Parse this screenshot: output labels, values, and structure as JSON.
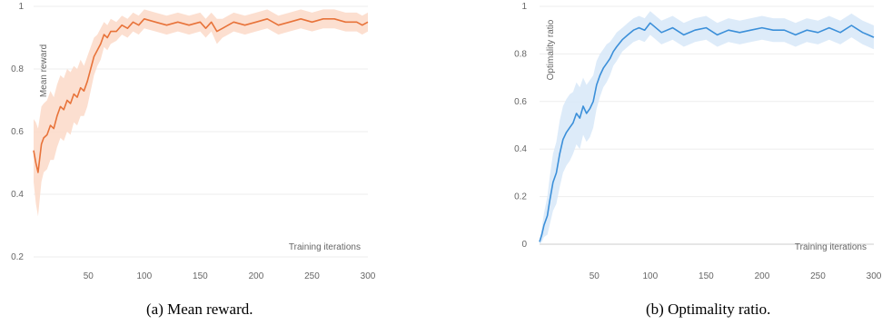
{
  "captions": {
    "a": "(a) Mean reward.",
    "b": "(b) Optimality ratio."
  },
  "chart_data": [
    {
      "type": "line",
      "xlabel": "Training iterations",
      "ylabel": "Mean reward",
      "xlim": [
        1,
        300
      ],
      "ylim": [
        0.2,
        1.0
      ],
      "x_ticks": [
        50,
        100,
        150,
        200,
        250,
        300
      ],
      "y_ticks": [
        0.2,
        0.4,
        0.6,
        0.8,
        1
      ],
      "grid": "horizontal",
      "color": "#e8733a",
      "band_color": "#fbd9c8",
      "series": [
        {
          "x": [
            1,
            3,
            5,
            8,
            10,
            13,
            16,
            19,
            22,
            25,
            28,
            31,
            34,
            37,
            40,
            43,
            46,
            49,
            52,
            55,
            58,
            61,
            64,
            67,
            70,
            75,
            80,
            85,
            90,
            95,
            100,
            110,
            120,
            130,
            140,
            150,
            155,
            160,
            165,
            170,
            175,
            180,
            190,
            200,
            210,
            220,
            230,
            240,
            250,
            260,
            270,
            280,
            290,
            295,
            300
          ],
          "y": [
            0.54,
            0.5,
            0.47,
            0.56,
            0.58,
            0.59,
            0.62,
            0.61,
            0.65,
            0.68,
            0.67,
            0.7,
            0.69,
            0.72,
            0.71,
            0.74,
            0.73,
            0.76,
            0.8,
            0.84,
            0.86,
            0.88,
            0.91,
            0.9,
            0.92,
            0.92,
            0.94,
            0.93,
            0.95,
            0.94,
            0.96,
            0.95,
            0.94,
            0.95,
            0.94,
            0.95,
            0.93,
            0.95,
            0.92,
            0.93,
            0.94,
            0.95,
            0.94,
            0.95,
            0.96,
            0.94,
            0.95,
            0.96,
            0.95,
            0.96,
            0.96,
            0.95,
            0.95,
            0.94,
            0.95
          ],
          "band": [
            0.1,
            0.13,
            0.14,
            0.12,
            0.11,
            0.11,
            0.11,
            0.1,
            0.1,
            0.1,
            0.1,
            0.1,
            0.1,
            0.09,
            0.09,
            0.09,
            0.08,
            0.08,
            0.07,
            0.06,
            0.05,
            0.05,
            0.04,
            0.04,
            0.04,
            0.03,
            0.03,
            0.03,
            0.03,
            0.03,
            0.03,
            0.03,
            0.03,
            0.03,
            0.03,
            0.03,
            0.03,
            0.03,
            0.04,
            0.03,
            0.03,
            0.03,
            0.03,
            0.03,
            0.03,
            0.03,
            0.03,
            0.03,
            0.03,
            0.03,
            0.03,
            0.03,
            0.03,
            0.03,
            0.03
          ]
        }
      ]
    },
    {
      "type": "line",
      "xlabel": "Training iterations",
      "ylabel": "Optimality ratio",
      "xlim": [
        1,
        300
      ],
      "ylim": [
        0,
        1.0
      ],
      "x_ticks": [
        50,
        100,
        150,
        200,
        250,
        300
      ],
      "y_ticks": [
        0,
        0.2,
        0.4,
        0.6,
        0.8,
        1
      ],
      "grid": "horizontal",
      "color": "#3b8fd9",
      "band_color": "#d7e8f8",
      "series": [
        {
          "x": [
            1,
            3,
            5,
            8,
            10,
            13,
            16,
            19,
            22,
            25,
            28,
            31,
            34,
            37,
            40,
            43,
            46,
            49,
            52,
            55,
            58,
            61,
            64,
            67,
            70,
            75,
            80,
            85,
            90,
            95,
            100,
            110,
            120,
            130,
            140,
            150,
            160,
            170,
            180,
            190,
            200,
            210,
            220,
            230,
            240,
            250,
            260,
            270,
            280,
            290,
            295,
            300
          ],
          "y": [
            0.01,
            0.04,
            0.08,
            0.12,
            0.18,
            0.26,
            0.3,
            0.38,
            0.44,
            0.47,
            0.49,
            0.51,
            0.55,
            0.53,
            0.58,
            0.55,
            0.57,
            0.6,
            0.67,
            0.71,
            0.74,
            0.76,
            0.78,
            0.81,
            0.83,
            0.86,
            0.88,
            0.9,
            0.91,
            0.9,
            0.93,
            0.89,
            0.91,
            0.88,
            0.9,
            0.91,
            0.88,
            0.9,
            0.89,
            0.9,
            0.91,
            0.9,
            0.9,
            0.88,
            0.9,
            0.89,
            0.91,
            0.89,
            0.92,
            0.89,
            0.88,
            0.87
          ],
          "band": [
            0.01,
            0.03,
            0.05,
            0.08,
            0.1,
            0.12,
            0.13,
            0.14,
            0.14,
            0.14,
            0.14,
            0.13,
            0.13,
            0.13,
            0.12,
            0.12,
            0.12,
            0.11,
            0.1,
            0.09,
            0.08,
            0.08,
            0.07,
            0.06,
            0.06,
            0.05,
            0.05,
            0.05,
            0.05,
            0.05,
            0.05,
            0.05,
            0.05,
            0.05,
            0.05,
            0.05,
            0.05,
            0.05,
            0.05,
            0.05,
            0.05,
            0.05,
            0.05,
            0.05,
            0.05,
            0.05,
            0.05,
            0.05,
            0.05,
            0.05,
            0.05,
            0.05
          ]
        }
      ]
    }
  ]
}
